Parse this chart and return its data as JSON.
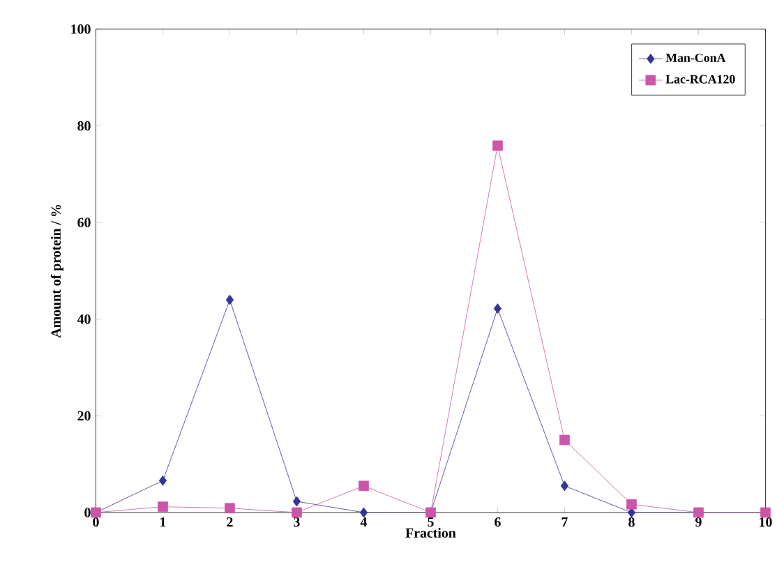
{
  "chart_data": {
    "type": "line",
    "xlabel": "Fraction",
    "ylabel": "Amount of protein / %",
    "x": [
      0,
      1,
      2,
      3,
      4,
      5,
      6,
      7,
      8,
      9,
      10
    ],
    "series": [
      {
        "name": "Man-ConA",
        "color": "#333399",
        "marker": "diamond",
        "values": [
          0,
          6.6,
          44,
          2.3,
          0,
          0,
          42.2,
          5.5,
          0,
          0,
          0
        ]
      },
      {
        "name": "Lac-RCA120",
        "color": "#cc55aa",
        "marker": "square",
        "values": [
          0,
          1.2,
          0.9,
          0,
          5.5,
          0,
          75.9,
          15,
          1.7,
          0,
          0
        ]
      }
    ],
    "xlim": [
      0,
      10
    ],
    "ylim": [
      0,
      100
    ],
    "xticks": [
      0,
      1,
      2,
      3,
      4,
      5,
      6,
      7,
      8,
      9,
      10
    ],
    "yticks": [
      0,
      20,
      40,
      60,
      80,
      100
    ],
    "legend": "top right",
    "grid": false,
    "line_style": "solid"
  }
}
